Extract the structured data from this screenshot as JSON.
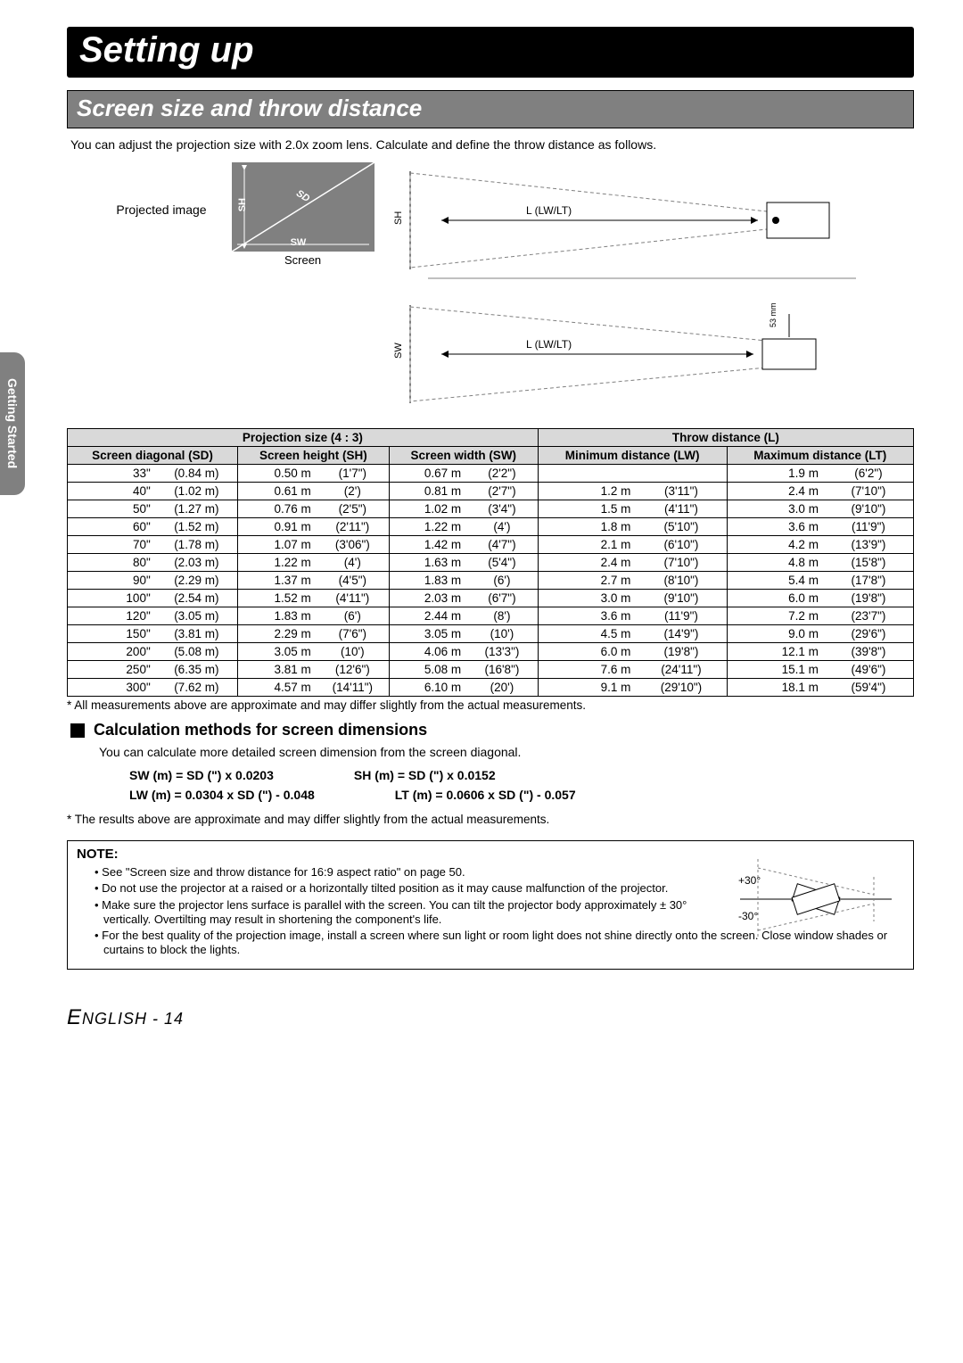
{
  "side_tab": "Getting Started",
  "title": "Setting up",
  "section": "Screen size and throw distance",
  "intro": "You can adjust the projection size with 2.0x zoom lens. Calculate and define the throw distance as follows.",
  "diagram": {
    "projected_label": "Projected image",
    "sh": "SH",
    "sd": "SD",
    "sw": "SW",
    "screen_caption": "Screen",
    "l_label": "L (LW/LT)",
    "sw_side": "SW",
    "sh_side": "SH",
    "mm_label": "53 mm"
  },
  "table": {
    "header_proj": "Projection size (4 : 3)",
    "header_throw": "Throw distance (L)",
    "col_sd": "Screen diagonal (SD)",
    "col_sh": "Screen height (SH)",
    "col_sw": "Screen width (SW)",
    "col_lw": "Minimum distance (LW)",
    "col_lt": "Maximum distance (LT)",
    "rows": [
      {
        "sd_in": "33\"",
        "sd_m": "(0.84 m)",
        "sh_m": "0.50 m",
        "sh_ft": "(1'7\")",
        "sw_m": "0.67 m",
        "sw_ft": "(2'2\")",
        "lw_m": "",
        "lw_ft": "",
        "lt_m": "1.9 m",
        "lt_ft": "(6'2\")"
      },
      {
        "sd_in": "40\"",
        "sd_m": "(1.02 m)",
        "sh_m": "0.61 m",
        "sh_ft": "(2')",
        "sw_m": "0.81 m",
        "sw_ft": "(2'7\")",
        "lw_m": "1.2 m",
        "lw_ft": "(3'11\")",
        "lt_m": "2.4 m",
        "lt_ft": "(7'10\")"
      },
      {
        "sd_in": "50\"",
        "sd_m": "(1.27 m)",
        "sh_m": "0.76 m",
        "sh_ft": "(2'5\")",
        "sw_m": "1.02 m",
        "sw_ft": "(3'4\")",
        "lw_m": "1.5 m",
        "lw_ft": "(4'11\")",
        "lt_m": "3.0 m",
        "lt_ft": "(9'10\")"
      },
      {
        "sd_in": "60\"",
        "sd_m": "(1.52 m)",
        "sh_m": "0.91 m",
        "sh_ft": "(2'11\")",
        "sw_m": "1.22 m",
        "sw_ft": "(4')",
        "lw_m": "1.8 m",
        "lw_ft": "(5'10\")",
        "lt_m": "3.6 m",
        "lt_ft": "(11'9\")"
      },
      {
        "sd_in": "70\"",
        "sd_m": "(1.78 m)",
        "sh_m": "1.07 m",
        "sh_ft": "(3'06\")",
        "sw_m": "1.42 m",
        "sw_ft": "(4'7\")",
        "lw_m": "2.1 m",
        "lw_ft": "(6'10\")",
        "lt_m": "4.2 m",
        "lt_ft": "(13'9\")"
      },
      {
        "sd_in": "80\"",
        "sd_m": "(2.03 m)",
        "sh_m": "1.22 m",
        "sh_ft": "(4')",
        "sw_m": "1.63 m",
        "sw_ft": "(5'4\")",
        "lw_m": "2.4 m",
        "lw_ft": "(7'10\")",
        "lt_m": "4.8 m",
        "lt_ft": "(15'8\")"
      },
      {
        "sd_in": "90\"",
        "sd_m": "(2.29 m)",
        "sh_m": "1.37 m",
        "sh_ft": "(4'5\")",
        "sw_m": "1.83 m",
        "sw_ft": "(6')",
        "lw_m": "2.7 m",
        "lw_ft": "(8'10\")",
        "lt_m": "5.4 m",
        "lt_ft": "(17'8\")"
      },
      {
        "sd_in": "100\"",
        "sd_m": "(2.54 m)",
        "sh_m": "1.52 m",
        "sh_ft": "(4'11\")",
        "sw_m": "2.03 m",
        "sw_ft": "(6'7\")",
        "lw_m": "3.0 m",
        "lw_ft": "(9'10\")",
        "lt_m": "6.0 m",
        "lt_ft": "(19'8\")"
      },
      {
        "sd_in": "120\"",
        "sd_m": "(3.05 m)",
        "sh_m": "1.83 m",
        "sh_ft": "(6')",
        "sw_m": "2.44 m",
        "sw_ft": "(8')",
        "lw_m": "3.6 m",
        "lw_ft": "(11'9\")",
        "lt_m": "7.2 m",
        "lt_ft": "(23'7\")"
      },
      {
        "sd_in": "150\"",
        "sd_m": "(3.81 m)",
        "sh_m": "2.29 m",
        "sh_ft": "(7'6\")",
        "sw_m": "3.05 m",
        "sw_ft": "(10')",
        "lw_m": "4.5 m",
        "lw_ft": "(14'9\")",
        "lt_m": "9.0 m",
        "lt_ft": "(29'6\")"
      },
      {
        "sd_in": "200\"",
        "sd_m": "(5.08 m)",
        "sh_m": "3.05 m",
        "sh_ft": "(10')",
        "sw_m": "4.06 m",
        "sw_ft": "(13'3\")",
        "lw_m": "6.0 m",
        "lw_ft": "(19'8\")",
        "lt_m": "12.1 m",
        "lt_ft": "(39'8\")"
      },
      {
        "sd_in": "250\"",
        "sd_m": "(6.35 m)",
        "sh_m": "3.81 m",
        "sh_ft": "(12'6\")",
        "sw_m": "5.08 m",
        "sw_ft": "(16'8\")",
        "lw_m": "7.6 m",
        "lw_ft": "(24'11\")",
        "lt_m": "15.1 m",
        "lt_ft": "(49'6\")"
      },
      {
        "sd_in": "300\"",
        "sd_m": "(7.62 m)",
        "sh_m": "4.57 m",
        "sh_ft": "(14'11\")",
        "sw_m": "6.10 m",
        "sw_ft": "(20')",
        "lw_m": "9.1 m",
        "lw_ft": "(29'10\")",
        "lt_m": "18.1 m",
        "lt_ft": "(59'4\")"
      }
    ]
  },
  "footnote1": "* All measurements above are approximate and may differ slightly from the actual measurements.",
  "calc_heading": "Calculation methods for screen dimensions",
  "calc_desc": "You can calculate more detailed screen dimension from the screen diagonal.",
  "formulas": {
    "sw": "SW (m) = SD (\") x 0.0203",
    "sh": "SH (m) = SD (\") x 0.0152",
    "lw": "LW (m) = 0.0304 x SD (\") - 0.048",
    "lt": "LT (m) = 0.0606 x SD (\") - 0.057"
  },
  "footnote2": "* The results above are approximate and may differ slightly from the actual measurements.",
  "note": {
    "title": "NOTE:",
    "items": [
      "See \"Screen size and throw distance for 16:9 aspect ratio\" on page 50.",
      "Do not use the projector at a raised or a horizontally tilted position as it may cause malfunction of the projector.",
      "Make sure the projector lens surface is parallel with the screen. You can tilt the projector body approximately ± 30° vertically. Overtilting may result in shortening the component's life.",
      "For the best quality of the projection image, install a screen where sun light or room light does not shine directly onto the screen. Close window shades or curtains to block the lights."
    ],
    "angle_plus": "+30°",
    "angle_minus": "-30°"
  },
  "footer": {
    "lang_first": "E",
    "lang_rest": "NGLISH",
    "sep": " - ",
    "page": "14"
  },
  "colors": {
    "black": "#000000",
    "gray_bar": "#808080",
    "gray_header": "#d9d9d9",
    "white": "#ffffff"
  }
}
